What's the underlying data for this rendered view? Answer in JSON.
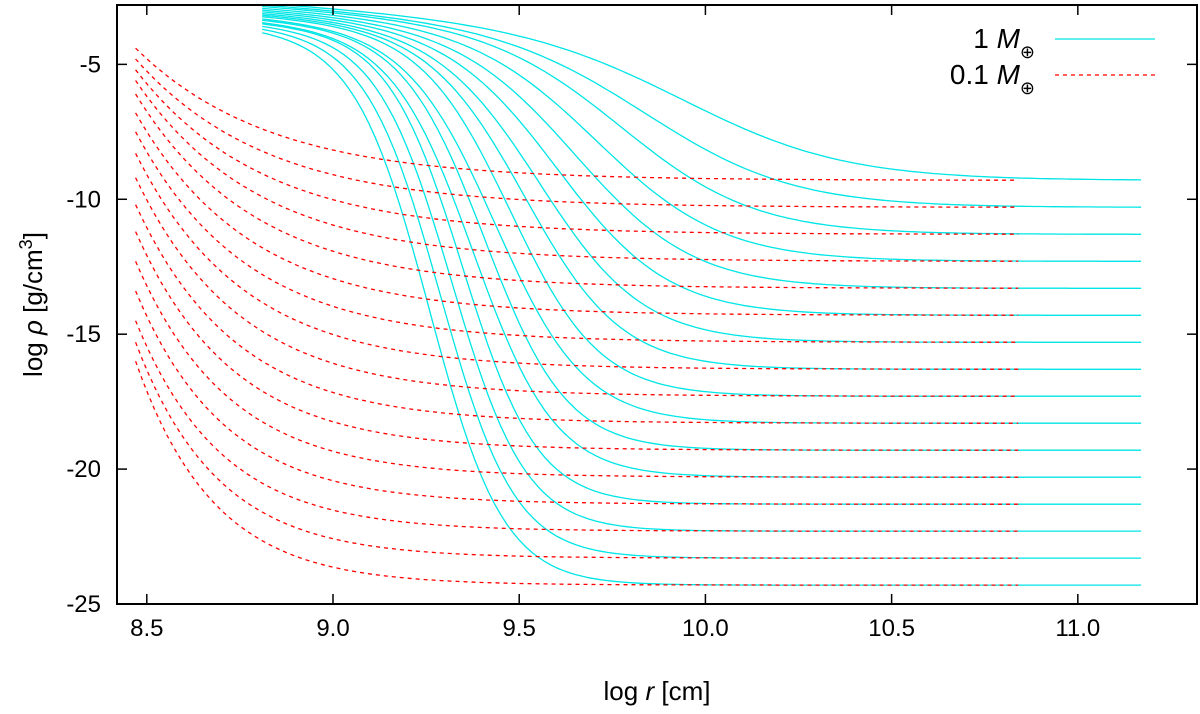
{
  "chart_data": {
    "type": "line",
    "xlabel": {
      "prefix": "log ",
      "symbol": "r",
      "unit": " [cm]"
    },
    "ylabel": {
      "prefix": "log ",
      "symbol": "ρ",
      "unit": " [g/cm",
      "exp": "3",
      "close": "]"
    },
    "xlim": [
      8.42,
      11.32
    ],
    "ylim": [
      -25,
      -2.8
    ],
    "xticks": [
      8.5,
      9.0,
      9.5,
      10.0,
      10.5,
      11.0
    ],
    "xtick_labels": [
      "8.5",
      "9.0",
      "9.5",
      "10.0",
      "10.5",
      "11.0"
    ],
    "yticks": [
      -5,
      -10,
      -15,
      -20,
      -25
    ],
    "ytick_labels": [
      "-5",
      "-10",
      "-15",
      "-20",
      "-25"
    ],
    "legend_position": "top-right",
    "legend": [
      {
        "prefix": "1 ",
        "symbol": "M",
        "sub": "⊕",
        "color": "#00e5e5",
        "style": "solid"
      },
      {
        "prefix": "0.1 ",
        "symbol": "M",
        "sub": "⊕",
        "color": "#ff0000",
        "style": "dashed"
      }
    ],
    "families": [
      {
        "name": "1 M⊕",
        "color": "#00e5e5",
        "style": "solid",
        "x_start": 8.81,
        "x_end": 11.17,
        "outer_values": [
          -9.3,
          -10.3,
          -11.3,
          -12.3,
          -13.3,
          -14.3,
          -15.3,
          -16.3,
          -17.3,
          -18.3,
          -19.3,
          -20.3,
          -21.3,
          -22.3,
          -23.3,
          -24.3
        ],
        "inner_values": [
          -2.7,
          -2.76,
          -2.82,
          -2.88,
          -2.94,
          -3.0,
          -3.06,
          -3.12,
          -3.18,
          -3.24,
          -3.3,
          -3.36,
          -3.42,
          -3.48,
          -3.54,
          -3.6
        ],
        "transition_x": [
          9.97,
          9.86,
          9.79,
          9.72,
          9.66,
          9.61,
          9.56,
          9.52,
          9.48,
          9.44,
          9.41,
          9.38,
          9.35,
          9.32,
          9.29,
          9.26
        ],
        "transition_width": [
          0.22,
          0.2,
          0.18,
          0.17,
          0.16,
          0.15,
          0.14,
          0.13,
          0.12,
          0.12,
          0.11,
          0.11,
          0.1,
          0.1,
          0.1,
          0.1
        ]
      },
      {
        "name": "0.1 M⊕",
        "color": "#ff0000",
        "style": "dashed",
        "x_start": 8.47,
        "x_end": 10.84,
        "outer_values": [
          -9.3,
          -10.3,
          -11.3,
          -12.3,
          -13.3,
          -14.3,
          -15.3,
          -16.3,
          -17.3,
          -18.3,
          -19.3,
          -20.3,
          -21.3,
          -22.3,
          -23.3,
          -24.3
        ],
        "inner_values": [
          -4.4,
          -4.8,
          -5.2,
          -5.6,
          -6.1,
          -6.8,
          -7.5,
          -8.3,
          -9.2,
          -10.2,
          -11.2,
          -12.3,
          -13.4,
          -14.5,
          -15.3,
          -16.0
        ],
        "decay_scale": [
          0.36,
          0.35,
          0.34,
          0.33,
          0.32,
          0.31,
          0.3,
          0.29,
          0.28,
          0.27,
          0.26,
          0.25,
          0.24,
          0.23,
          0.22,
          0.21
        ]
      }
    ]
  }
}
